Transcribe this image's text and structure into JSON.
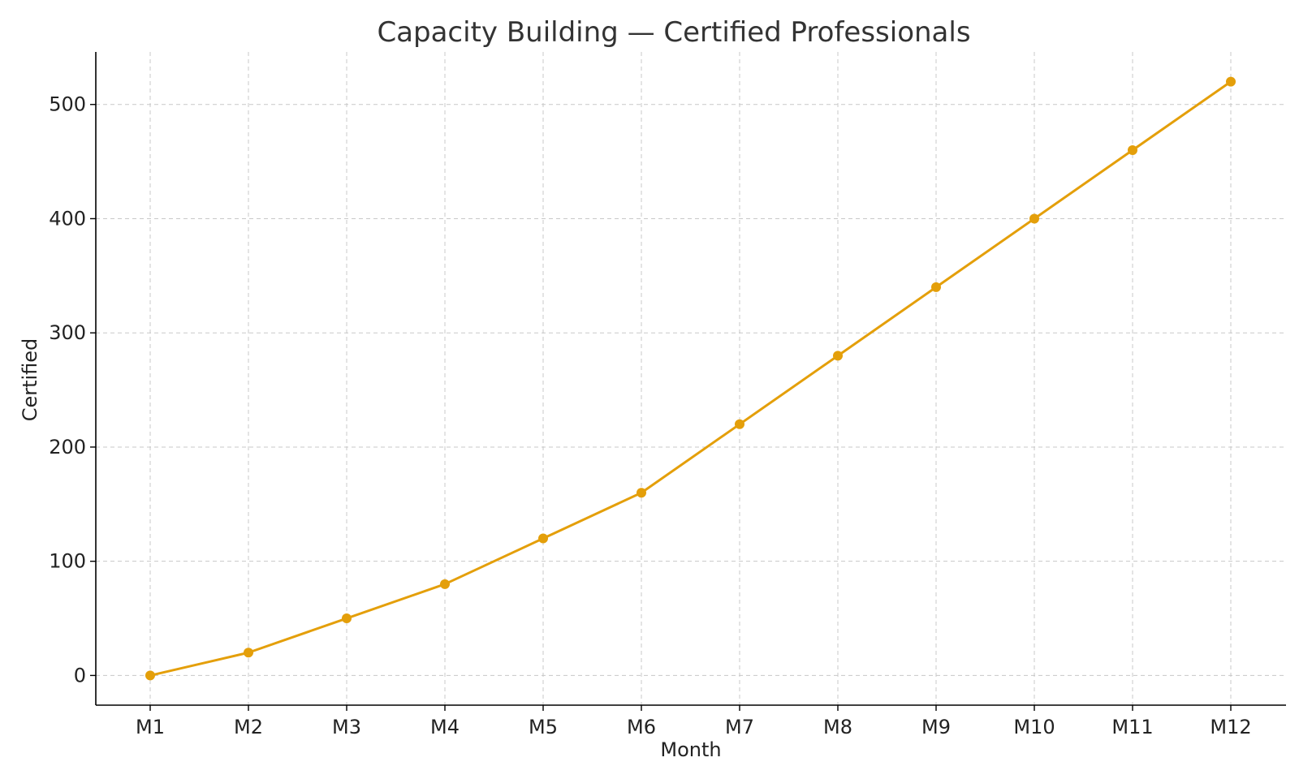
{
  "chart_data": {
    "type": "line",
    "title": "Capacity Building — Certified Professionals",
    "xlabel": "Month",
    "ylabel": "Certified",
    "categories": [
      "M1",
      "M2",
      "M3",
      "M4",
      "M5",
      "M6",
      "M7",
      "M8",
      "M9",
      "M10",
      "M11",
      "M12"
    ],
    "series": [
      {
        "values": [
          0,
          20,
          50,
          80,
          120,
          160,
          220,
          280,
          340,
          400,
          460,
          520
        ],
        "color": "#E49F0A"
      }
    ],
    "ylim": [
      -26,
      546
    ],
    "yticks": [
      0,
      100,
      200,
      300,
      400,
      500
    ],
    "grid": true,
    "legend": "none"
  }
}
